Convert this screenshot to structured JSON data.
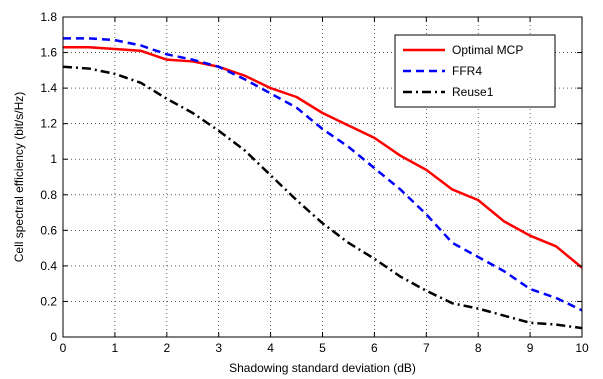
{
  "chart_data": {
    "type": "line",
    "title": "",
    "xlabel": "Shadowing standard deviation (dB)",
    "ylabel": "Cell spectral efficiency (bit/s/Hz)",
    "xlim": [
      0,
      10
    ],
    "ylim": [
      0,
      1.8
    ],
    "xticks": [
      "0",
      "1",
      "2",
      "3",
      "4",
      "5",
      "6",
      "7",
      "8",
      "9",
      "10"
    ],
    "yticks": [
      "0",
      "0.2",
      "0.4",
      "0.6",
      "0.8",
      "1",
      "1.2",
      "1.4",
      "1.6",
      "1.8"
    ],
    "grid": true,
    "legend_position": "top-right",
    "x": [
      0,
      0.5,
      1,
      1.5,
      2,
      2.5,
      3,
      3.5,
      4,
      4.5,
      5,
      5.5,
      6,
      6.5,
      7,
      7.5,
      8,
      8.5,
      9,
      9.5,
      10
    ],
    "series": [
      {
        "name": "Optimal MCP",
        "color": "#ff0000",
        "line_style": "solid",
        "values": [
          1.63,
          1.63,
          1.62,
          1.61,
          1.56,
          1.55,
          1.52,
          1.47,
          1.4,
          1.35,
          1.26,
          1.19,
          1.12,
          1.02,
          0.94,
          0.83,
          0.77,
          0.65,
          0.57,
          0.51,
          0.39
        ]
      },
      {
        "name": "FFR4",
        "color": "#0000ff",
        "line_style": "dashed",
        "values": [
          1.68,
          1.68,
          1.67,
          1.64,
          1.59,
          1.56,
          1.52,
          1.45,
          1.37,
          1.29,
          1.17,
          1.07,
          0.95,
          0.83,
          0.69,
          0.53,
          0.45,
          0.37,
          0.27,
          0.22,
          0.15
        ]
      },
      {
        "name": "Reuse1",
        "color": "#000000",
        "line_style": "dashdot",
        "values": [
          1.52,
          1.51,
          1.48,
          1.43,
          1.34,
          1.26,
          1.16,
          1.05,
          0.91,
          0.77,
          0.64,
          0.53,
          0.44,
          0.34,
          0.26,
          0.19,
          0.16,
          0.12,
          0.08,
          0.07,
          0.05
        ]
      }
    ]
  }
}
